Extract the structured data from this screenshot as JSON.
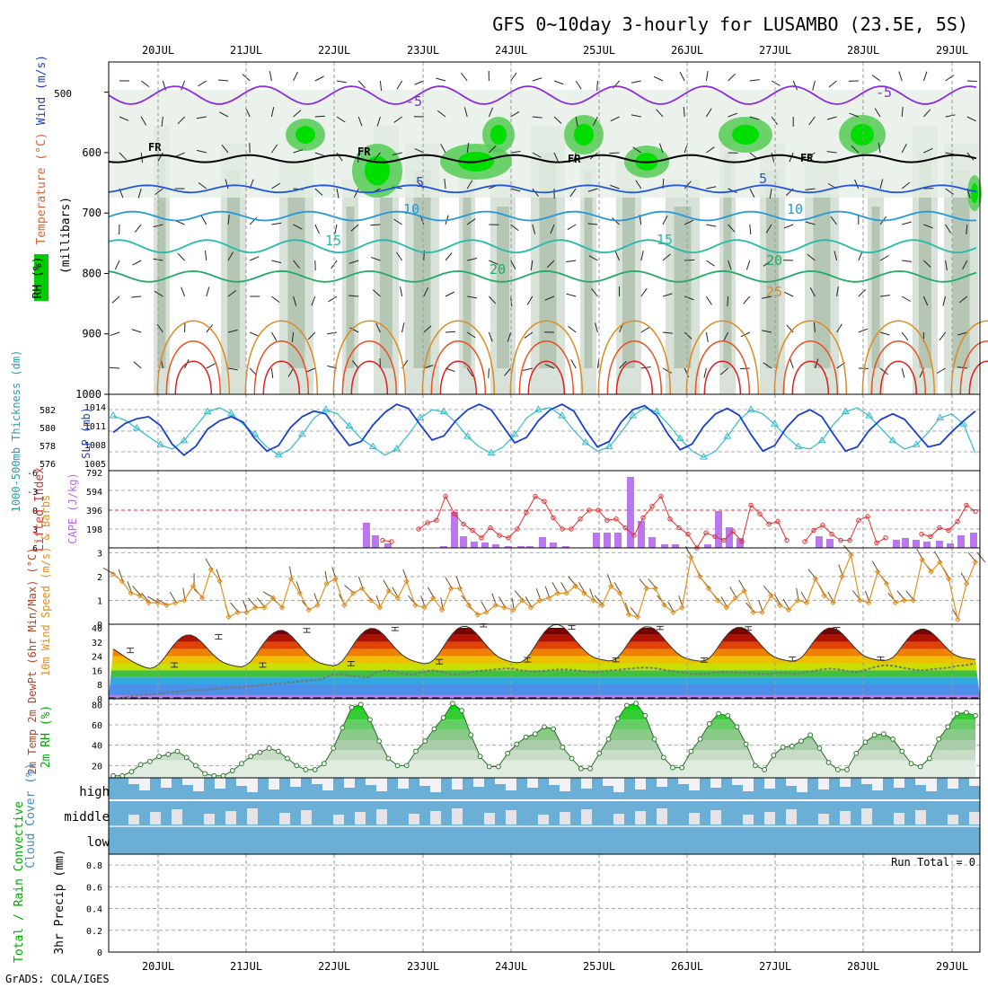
{
  "title": "GFS 0~10day 3-hourly for LUSAMBO (23.5E, 5S)",
  "footer": "GrADS: COLA/IGES",
  "dates": [
    "20JUL",
    "21JUL",
    "22JUL",
    "23JUL",
    "24JUL",
    "25JUL",
    "26JUL",
    "27JUL",
    "28JUL",
    "29JUL"
  ],
  "colors": {
    "rh_green": "#00dd00",
    "slp_line": "#1a3fcf",
    "thickness_line": "#33bbcc",
    "lifted_index": "#e03030",
    "cape_bar": "#bb77ee",
    "wind_speed": "#e09020",
    "cloud_blue": "#6baed6",
    "rh_2m": "#00aa00"
  },
  "chart_data": [
    {
      "type": "heatmap",
      "panel": "upper_air",
      "ylabel_parts": [
        "RH (%)",
        "Temperature (°C)",
        "Wind (m/s)"
      ],
      "yunit": "(millibars)",
      "yticks": [
        500,
        600,
        700,
        800,
        900,
        1000
      ],
      "ylim": [
        1000,
        450
      ],
      "contour_labels": {
        "temperature": [
          "-5",
          "5",
          "10",
          "15",
          "20",
          "25"
        ],
        "freezing": "FR"
      }
    },
    {
      "type": "line",
      "panel": "slp_thickness",
      "ylabel_left": "1000-500mb Thickness (dm)",
      "ylabel_right": "SLP (mb)",
      "yticks_left": [
        "582",
        "580",
        "578",
        "576"
      ],
      "yticks_right": [
        "1014",
        "1011",
        "1008",
        "1005"
      ],
      "slp": [
        1009.5,
        1010.8,
        1011.5,
        1011.8,
        1010.5,
        1007.8,
        1006.2,
        1007.5,
        1010.0,
        1011.2,
        1011.8,
        1011.0,
        1008.6,
        1006.8,
        1007.6,
        1010.2,
        1011.8,
        1012.6,
        1012.2,
        1009.8,
        1007.6,
        1008.2,
        1010.6,
        1012.4,
        1013.6,
        1013.0,
        1010.6,
        1008.4,
        1009.0,
        1011.2,
        1012.8,
        1013.6,
        1012.8,
        1010.4,
        1008.0,
        1008.8,
        1011.2,
        1012.8,
        1013.6,
        1012.6,
        1009.8,
        1007.4,
        1008.2,
        1011.0,
        1012.8,
        1013.4,
        1012.0,
        1009.2,
        1007.0,
        1007.8,
        1010.4,
        1012.2,
        1013.0,
        1012.0,
        1009.2,
        1006.8,
        1007.6,
        1010.2,
        1012.0,
        1012.8,
        1011.8,
        1009.2,
        1006.8,
        1007.4,
        1009.8,
        1011.4,
        1012.2,
        1011.4,
        1009.4,
        1007.4,
        1007.8,
        1009.6,
        1011.2,
        1012.6
      ],
      "thickness": [
        580.6,
        580.2,
        579.4,
        578.6,
        577.8,
        577.4,
        578.2,
        579.6,
        581.0,
        581.4,
        580.8,
        579.8,
        578.8,
        577.6,
        576.8,
        577.4,
        578.8,
        580.4,
        581.2,
        580.8,
        579.6,
        578.4,
        577.6,
        576.8,
        577.4,
        578.8,
        580.4,
        581.2,
        581.0,
        580.0,
        578.6,
        577.6,
        577.0,
        577.6,
        578.8,
        580.4,
        581.2,
        581.4,
        580.6,
        579.2,
        578.0,
        577.2,
        577.6,
        579.0,
        580.6,
        581.4,
        581.0,
        579.8,
        578.4,
        577.2,
        576.6,
        577.2,
        578.6,
        580.2,
        581.2,
        580.8,
        579.8,
        578.6,
        577.6,
        577.4,
        578.2,
        579.8,
        581.0,
        581.4,
        580.6,
        579.4,
        578.2,
        577.4,
        577.8,
        579.0,
        580.4,
        580.8,
        579.8,
        577.0
      ]
    },
    {
      "type": "bar",
      "panel": "stability",
      "ylabel_left": "Lifted Index",
      "ylabel_right": "CAPE (J/kg)",
      "yticks_left": [
        "-6",
        "-3",
        "0",
        "3",
        "6"
      ],
      "yticks_right": [
        "792",
        "594",
        "396",
        "198"
      ],
      "lifted_index": [
        null,
        null,
        null,
        null,
        null,
        null,
        null,
        null,
        null,
        null,
        null,
        null,
        null,
        null,
        null,
        null,
        null,
        null,
        null,
        null,
        null,
        null,
        null,
        null,
        null,
        null,
        null,
        null,
        null,
        null,
        4.8,
        5.0,
        6.2,
        null,
        3.0,
        2.0,
        1.6,
        -2.2,
        0.6,
        2.2,
        3.2,
        4.4,
        2.8,
        4.0,
        4.4,
        3.0,
        0.4,
        -2.2,
        -1.4,
        1.2,
        3.0,
        3.0,
        1.4,
        0.0,
        0.0,
        1.6,
        1.4,
        2.8,
        4.0,
        1.2,
        -0.6,
        -2.2,
        1.4,
        2.8,
        3.8,
        6.0,
        3.6,
        4.2,
        4.8,
        3.4,
        5.0,
        -0.8,
        0.6,
        2.2,
        1.8,
        4.8,
        6.2,
        5.0,
        3.2,
        2.4,
        3.8,
        4.8,
        4.8,
        1.6,
        1.0,
        5.2,
        4.4,
        null,
        null,
        null,
        3.8,
        4.2,
        2.8,
        3.2,
        1.8,
        -0.8,
        0.2
      ],
      "cape": [
        0,
        0,
        0,
        0,
        0,
        0,
        0,
        0,
        0,
        0,
        0,
        0,
        0,
        0,
        0,
        0,
        0,
        0,
        0,
        0,
        0,
        0,
        0,
        0,
        0,
        0,
        0,
        0,
        0,
        0,
        0,
        0,
        0,
        0,
        0,
        0,
        0,
        0,
        0,
        0,
        0,
        0,
        0,
        0,
        0,
        0,
        0,
        0,
        0,
        0,
        0,
        0,
        0,
        0,
        0,
        0,
        0,
        0,
        0,
        0,
        0,
        0,
        0,
        0,
        0,
        0,
        0,
        0,
        0,
        0,
        0,
        0,
        0,
        0,
        0,
        0,
        0,
        0,
        0,
        0,
        0,
        0,
        0,
        0,
        0,
        0,
        0,
        0,
        0,
        0,
        0,
        0,
        0,
        0,
        0
      ]
    },
    {
      "type": "line",
      "panel": "wind10m",
      "ylabel": "10m Wind Speed (m/s) & Barbs",
      "yticks": [
        "3",
        "2",
        "1",
        "0"
      ],
      "ylim": [
        0,
        3.2
      ],
      "values": [
        2.1,
        1.8,
        1.3,
        1.2,
        0.9,
        0.9,
        0.8,
        0.9,
        1.0,
        1.6,
        1.1,
        2.3,
        1.8,
        0.3,
        0.5,
        0.5,
        0.7,
        0.7,
        1.1,
        0.7,
        1.9,
        1.3,
        0.6,
        0.8,
        1.7,
        1.9,
        0.8,
        1.3,
        1.5,
        1.0,
        0.7,
        1.4,
        1.1,
        1.8,
        0.8,
        0.7,
        1.1,
        0.6,
        1.5,
        1.5,
        0.8,
        0.4,
        0.5,
        0.8,
        0.7,
        0.6,
        1.0,
        0.7,
        1.0,
        1.1,
        1.3,
        1.3,
        1.6,
        1.3,
        1.0,
        0.8,
        1.6,
        1.3,
        0.4,
        0.3,
        1.5,
        1.5,
        0.8,
        0.5,
        0.7,
        2.8,
        2.0,
        1.5,
        1.0,
        0.7,
        1.1,
        1.4,
        0.5,
        0.5,
        1.2,
        0.8,
        0.6,
        1.0,
        0.9,
        1.9,
        1.2,
        0.9,
        2.0,
        2.9,
        1.0,
        0.9,
        2.2,
        1.7,
        0.9,
        1.0,
        1.0,
        2.7,
        2.2,
        2.6,
        1.9,
        0.2,
        1.7,
        2.6
      ],
      "barb_dirs": [
        210,
        250,
        250,
        230,
        230,
        210,
        210,
        240,
        260,
        270,
        225,
        240,
        250,
        250,
        230,
        250,
        230,
        230,
        210,
        220,
        260,
        250,
        230,
        250,
        260,
        250,
        240,
        220,
        250,
        230,
        250,
        240,
        240,
        250,
        230,
        250,
        240,
        260,
        240,
        250,
        230,
        220,
        240,
        250,
        240,
        260,
        230,
        240,
        250,
        250,
        240,
        240,
        230,
        240,
        250,
        230,
        250,
        240,
        250,
        230,
        230,
        230,
        230,
        240,
        250,
        240,
        240,
        230,
        230,
        240,
        240,
        240,
        230,
        250,
        230,
        240,
        240,
        260,
        240,
        230,
        240,
        240,
        250,
        230,
        230,
        250,
        240,
        230,
        230,
        230,
        230,
        240,
        230,
        240,
        240,
        240,
        240,
        230,
        230
      ]
    },
    {
      "type": "area",
      "panel": "temp2m",
      "ylabel": "2m Temp 2m DewPt (6hr Min/Max) (°C)",
      "yticks": [
        "40",
        "32",
        "24",
        "16",
        "8",
        "0"
      ],
      "ylim": [
        0,
        42
      ],
      "temp": [
        28.1,
        26.4,
        24.7,
        22.9,
        21.3,
        19.9,
        18.7,
        17.7,
        17.1,
        17.8,
        19.6,
        22.5,
        26.1,
        29.6,
        32.6,
        34.8,
        35.9,
        35.9,
        34.7,
        32.6,
        29.9,
        27.0,
        24.4,
        22.1,
        20.5,
        19.5,
        18.8,
        18.2,
        18.0,
        18.9,
        21.0,
        24.3,
        28.2,
        31.9,
        35.0,
        37.2,
        38.4,
        38.5,
        37.3,
        35.0,
        32.2,
        29.1,
        26.2,
        23.6,
        21.6,
        20.3,
        19.5,
        19.0,
        18.6,
        19.3,
        21.4,
        24.8,
        28.9,
        32.8,
        36.1,
        38.4,
        39.6,
        39.5,
        38.3,
        36.0,
        33.1,
        30.0,
        27.2,
        24.8,
        22.9,
        21.7,
        20.9,
        20.2,
        19.8,
        20.3,
        22.1,
        25.3,
        29.3,
        33.3,
        36.7,
        39.3,
        40.7,
        40.8,
        39.6,
        37.3,
        34.4,
        31.2,
        28.3,
        25.6,
        23.6,
        22.3,
        21.4,
        20.7,
        20.3,
        20.7,
        22.4,
        25.7,
        29.8,
        33.9,
        37.5,
        40.1,
        41.6,
        41.8,
        40.7,
        38.3,
        35.4,
        32.3,
        29.3,
        26.6,
        24.5,
        23.1,
        22.3,
        21.8,
        21.3,
        21.7,
        23.3,
        26.3,
        30.1,
        33.9,
        37.1,
        39.3,
        40.6,
        40.5,
        39.3,
        37.0,
        34.1,
        31.0,
        28.2,
        25.7,
        23.8,
        22.7,
        22.0,
        21.5,
        21.2,
        21.5,
        22.9,
        25.8,
        29.5,
        33.3,
        36.5,
        38.9,
        40.2,
        40.2,
        39.1,
        36.9,
        34.1,
        31.0,
        28.1,
        25.6,
        23.8,
        22.7,
        22.0,
        21.5,
        21.2,
        21.6,
        23.1,
        26.0,
        29.6,
        33.2,
        36.3,
        38.6,
        39.8,
        39.8,
        38.7,
        36.6,
        33.8,
        30.8,
        28.0,
        25.6,
        23.8,
        22.8,
        22.2,
        21.7,
        21.5,
        21.9,
        23.3,
        26.0,
        29.6,
        33.0,
        36.0,
        38.1,
        39.2,
        39.2,
        38.1,
        36.1,
        33.5,
        30.6,
        27.9,
        25.6,
        24.1,
        23.3,
        22.8,
        22.4,
        22.2
      ],
      "dewpoint": [
        0.0,
        0.5,
        1.5,
        2.0,
        2.5,
        3.0,
        3.5,
        4.0,
        4.5,
        5.0,
        5.0,
        5.5,
        6.0,
        6.5,
        6.5,
        7.0,
        7.5,
        8.0,
        8.5,
        9.0,
        9.5,
        10.0,
        10.5,
        11.0,
        13.5,
        14.0,
        13.0,
        12.5,
        12.0,
        15.0,
        16.0,
        15.5,
        14.0,
        13.5,
        15.0,
        16.0,
        15.5,
        14.0,
        13.5,
        14.5,
        15.5,
        16.0,
        16.5,
        17.0,
        17.0,
        16.0,
        15.5,
        15.5,
        16.0,
        16.5,
        16.5,
        16.0,
        15.5,
        15.0,
        15.5,
        16.0,
        16.5,
        17.0,
        17.5,
        17.5,
        17.0,
        16.0,
        15.5,
        14.5,
        14.0,
        14.0,
        14.5,
        15.0,
        15.0,
        14.5,
        14.5,
        14.0,
        14.0,
        14.5,
        14.5,
        14.0,
        14.5,
        15.5,
        16.5,
        17.0,
        16.5,
        15.5,
        15.0,
        16.5,
        18.0,
        19.0,
        18.5,
        17.5,
        16.5,
        16.0,
        16.5,
        17.0,
        17.5,
        18.5,
        19.0,
        20.0
      ],
      "min_max_err": [
        [
          26.0,
          28.5
        ],
        [
          17.8,
          20.2
        ],
        [
          33.6,
          36.2
        ],
        [
          17.8,
          20.2
        ],
        [
          37.4,
          39.6
        ],
        [
          18.6,
          21.0
        ],
        [
          38.4,
          40.2
        ],
        [
          19.6,
          22.2
        ],
        [
          40.5,
          42.2
        ],
        [
          20.7,
          23.2
        ],
        [
          39.2,
          41.2
        ],
        [
          20.8,
          23.0
        ],
        [
          39.0,
          40.8
        ],
        [
          20.6,
          23.0
        ],
        [
          38.6,
          40.6
        ],
        [
          21.2,
          23.6
        ],
        [
          38.0,
          40.2
        ],
        [
          21.8,
          23.6
        ]
      ]
    },
    {
      "type": "area",
      "panel": "rh2m",
      "ylabel": "2m RH (%)",
      "yticks": [
        "80",
        "60",
        "40",
        "20"
      ],
      "ylim": [
        8,
        82
      ],
      "values": [
        10,
        10,
        14,
        21,
        24,
        29,
        31,
        34,
        28,
        20,
        12,
        10,
        10,
        15,
        22,
        29,
        33,
        37,
        34,
        27,
        20,
        16,
        16,
        22,
        37,
        57,
        77,
        80,
        65,
        44,
        27,
        20,
        20,
        34,
        44,
        56,
        67,
        81,
        74,
        50,
        29,
        19,
        19,
        32,
        41,
        48,
        51,
        58,
        56,
        38,
        27,
        17,
        17,
        32,
        46,
        66,
        79,
        81,
        69,
        46,
        28,
        18,
        18,
        34,
        46,
        61,
        71,
        69,
        58,
        41,
        20,
        16,
        30,
        38,
        39,
        44,
        50,
        37,
        23,
        16,
        16,
        32,
        43,
        50,
        51,
        46,
        34,
        22,
        19,
        27,
        46,
        58,
        71,
        72,
        69
      ]
    },
    {
      "type": "table",
      "panel": "cloud_cover",
      "ylabel": "Cloud Cover (%)",
      "levels": [
        "high",
        "middle",
        "low"
      ]
    },
    {
      "type": "bar",
      "panel": "precip",
      "ylabel_left": "Total / Rain Convective",
      "ylabel_right": "3hr Precip (mm)",
      "yticks": [
        "0.8",
        "0.6",
        "0.4",
        "0.2",
        "0"
      ],
      "ylim": [
        0,
        0.9
      ],
      "run_total": "Run Total = 0",
      "values": []
    }
  ]
}
